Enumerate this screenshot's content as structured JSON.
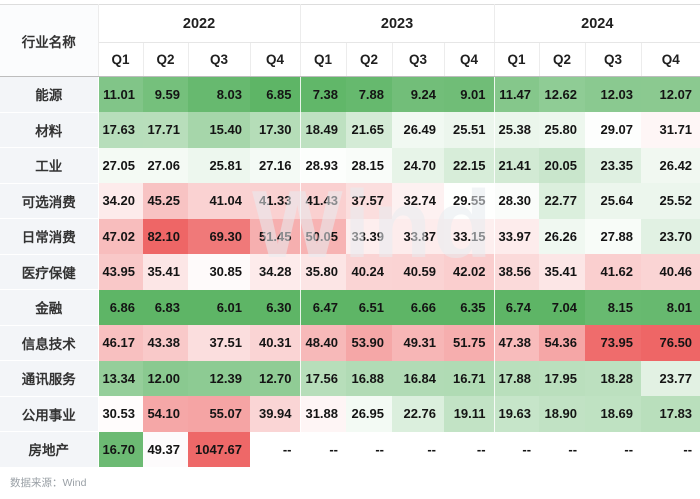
{
  "chart_data": {
    "type": "heatmap",
    "corner_label": "行业名称",
    "years": [
      "2022",
      "2023",
      "2024"
    ],
    "quarters": [
      "Q1",
      "Q2",
      "Q3",
      "Q4"
    ],
    "null_display": "--",
    "rows": [
      {
        "industry": "能源",
        "values": [
          11.01,
          9.59,
          8.03,
          6.85,
          7.38,
          7.88,
          9.24,
          9.01,
          11.47,
          12.62,
          12.03,
          12.07
        ]
      },
      {
        "industry": "材料",
        "values": [
          17.63,
          17.71,
          15.4,
          17.3,
          18.49,
          21.65,
          26.49,
          25.51,
          25.38,
          25.8,
          29.07,
          31.71
        ]
      },
      {
        "industry": "工业",
        "values": [
          27.05,
          27.06,
          25.81,
          27.16,
          28.93,
          28.15,
          24.7,
          22.15,
          21.41,
          20.05,
          23.35,
          26.42
        ]
      },
      {
        "industry": "可选消费",
        "values": [
          34.2,
          45.25,
          41.04,
          41.33,
          41.43,
          37.57,
          32.74,
          29.55,
          28.3,
          22.77,
          25.64,
          25.52
        ]
      },
      {
        "industry": "日常消费",
        "values": [
          47.02,
          82.1,
          69.3,
          51.45,
          50.05,
          33.39,
          33.87,
          33.15,
          33.97,
          26.26,
          27.88,
          23.7
        ]
      },
      {
        "industry": "医疗保健",
        "values": [
          43.95,
          35.41,
          30.85,
          34.28,
          35.8,
          40.24,
          40.59,
          42.02,
          38.56,
          35.41,
          41.62,
          40.46
        ]
      },
      {
        "industry": "金融",
        "values": [
          6.86,
          6.83,
          6.01,
          6.3,
          6.47,
          6.51,
          6.66,
          6.35,
          6.74,
          7.04,
          8.15,
          8.01
        ]
      },
      {
        "industry": "信息技术",
        "values": [
          46.17,
          43.38,
          37.51,
          40.31,
          48.4,
          53.9,
          49.31,
          51.75,
          47.38,
          54.36,
          73.95,
          76.5
        ]
      },
      {
        "industry": "通讯服务",
        "values": [
          13.34,
          12.0,
          12.39,
          12.7,
          17.56,
          16.88,
          16.84,
          16.71,
          17.88,
          17.95,
          18.28,
          23.77
        ]
      },
      {
        "industry": "公用事业",
        "values": [
          30.53,
          54.1,
          55.07,
          39.94,
          31.88,
          26.95,
          22.76,
          19.11,
          19.63,
          18.9,
          18.69,
          17.83
        ]
      },
      {
        "industry": "房地产",
        "values": [
          16.7,
          49.37,
          1047.67,
          null,
          null,
          null,
          null,
          null,
          null,
          null,
          null,
          null
        ],
        "color_overrides": {
          "0": "#6cba73",
          "1": "#fdfbfc",
          "2": "#ee6868"
        }
      }
    ],
    "color_scale": {
      "green": "#5eb566",
      "mid": "#ffffff",
      "red": "#ee6666",
      "green_full_at": 7,
      "white_at": 30,
      "red_full_at": 76
    }
  },
  "watermark": {
    "text": "Wind"
  },
  "footer": {
    "source_text": "数据来源：Wind"
  }
}
